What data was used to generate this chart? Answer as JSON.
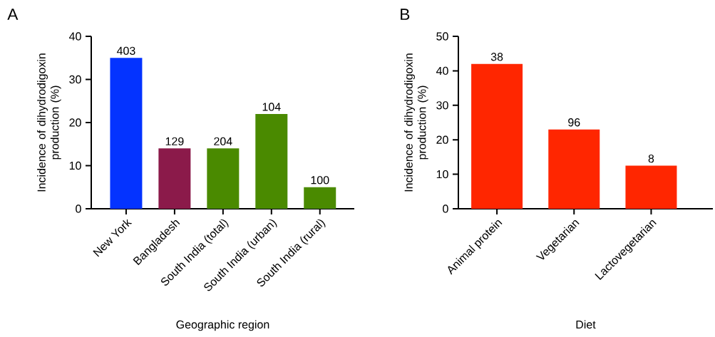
{
  "chart_data": [
    {
      "type": "bar",
      "title": "A",
      "xlabel": "Geographic region",
      "ylabel": "Incidence of dihydrodigoxin production (%)",
      "categories": [
        "New York",
        "Bangladesh",
        "South India (total)",
        "South India (urban)",
        "South India (rural)"
      ],
      "values": [
        35,
        14,
        14,
        22,
        5
      ],
      "colors": [
        "#0433ff",
        "#8b1a4a",
        "#4a8a00",
        "#4a8a00",
        "#4a8a00"
      ],
      "ylim": [
        0,
        40
      ],
      "yticks": [
        0,
        10,
        20,
        30,
        40
      ],
      "annotations": [
        {
          "text": "403",
          "x": "New York",
          "y": 35
        },
        {
          "text": "129",
          "x": "Bangladesh",
          "y": 14
        },
        {
          "text": "204",
          "x": "South India (total)",
          "y": 14
        },
        {
          "text": "104",
          "x": "South India (urban)",
          "y": 22
        },
        {
          "text": "100",
          "x": "South India (rural)",
          "y": 5
        }
      ]
    },
    {
      "type": "bar",
      "title": "B",
      "xlabel": "Diet",
      "ylabel": "Incidence of dihydrodigoxin production (%)",
      "categories": [
        "Animal protein",
        "Vegetarian",
        "Lactovegetarian"
      ],
      "values": [
        42,
        23,
        12.5
      ],
      "colors": [
        "#ff2600",
        "#ff2600",
        "#ff2600"
      ],
      "ylim": [
        0,
        50
      ],
      "yticks": [
        0,
        10,
        20,
        30,
        40,
        50
      ],
      "annotations": [
        {
          "text": "38",
          "x": "Animal protein",
          "y": 42
        },
        {
          "text": "96",
          "x": "Vegetarian",
          "y": 23
        },
        {
          "text": "8",
          "x": "Lactovegetarian",
          "y": 12.5
        }
      ]
    }
  ]
}
